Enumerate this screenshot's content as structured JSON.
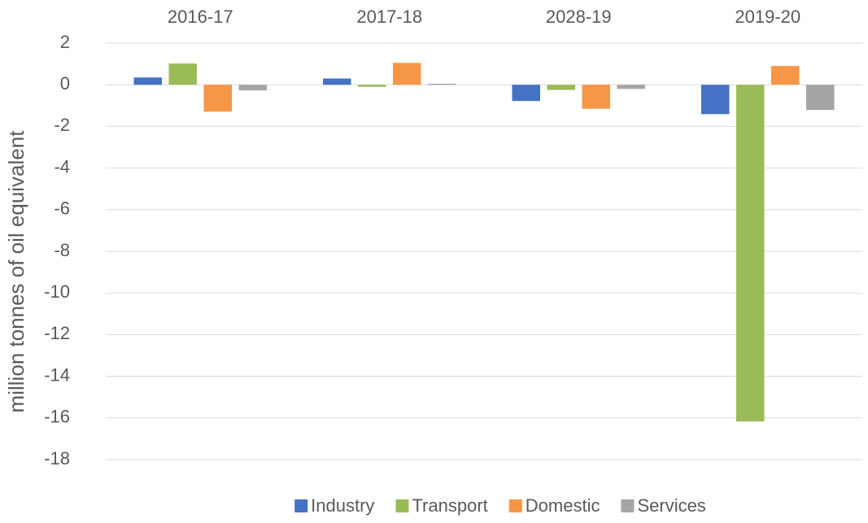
{
  "chart_data": {
    "type": "bar",
    "y_label": "million tonnes of oil equivalent",
    "categories": [
      "2016-17",
      "2017-18",
      "2028-19",
      "2019-20"
    ],
    "series": [
      {
        "name": "Industry",
        "color": "#4472c4",
        "values": [
          0.35,
          0.3,
          -0.78,
          -1.41
        ]
      },
      {
        "name": "Transport",
        "color": "#9bbb59",
        "values": [
          1.02,
          -0.1,
          -0.25,
          -16.17
        ]
      },
      {
        "name": "Domestic",
        "color": "#f79646",
        "values": [
          -1.29,
          1.05,
          -1.15,
          0.9
        ]
      },
      {
        "name": "Services",
        "color": "#a5a5a5",
        "values": [
          -0.27,
          0.05,
          -0.2,
          -1.21
        ]
      }
    ],
    "ylim": [
      -18,
      2
    ],
    "yticks": [
      2,
      0,
      -2,
      -4,
      -6,
      -8,
      -10,
      -12,
      -14,
      -16,
      -18
    ],
    "grid": true,
    "legend": "bottom"
  }
}
